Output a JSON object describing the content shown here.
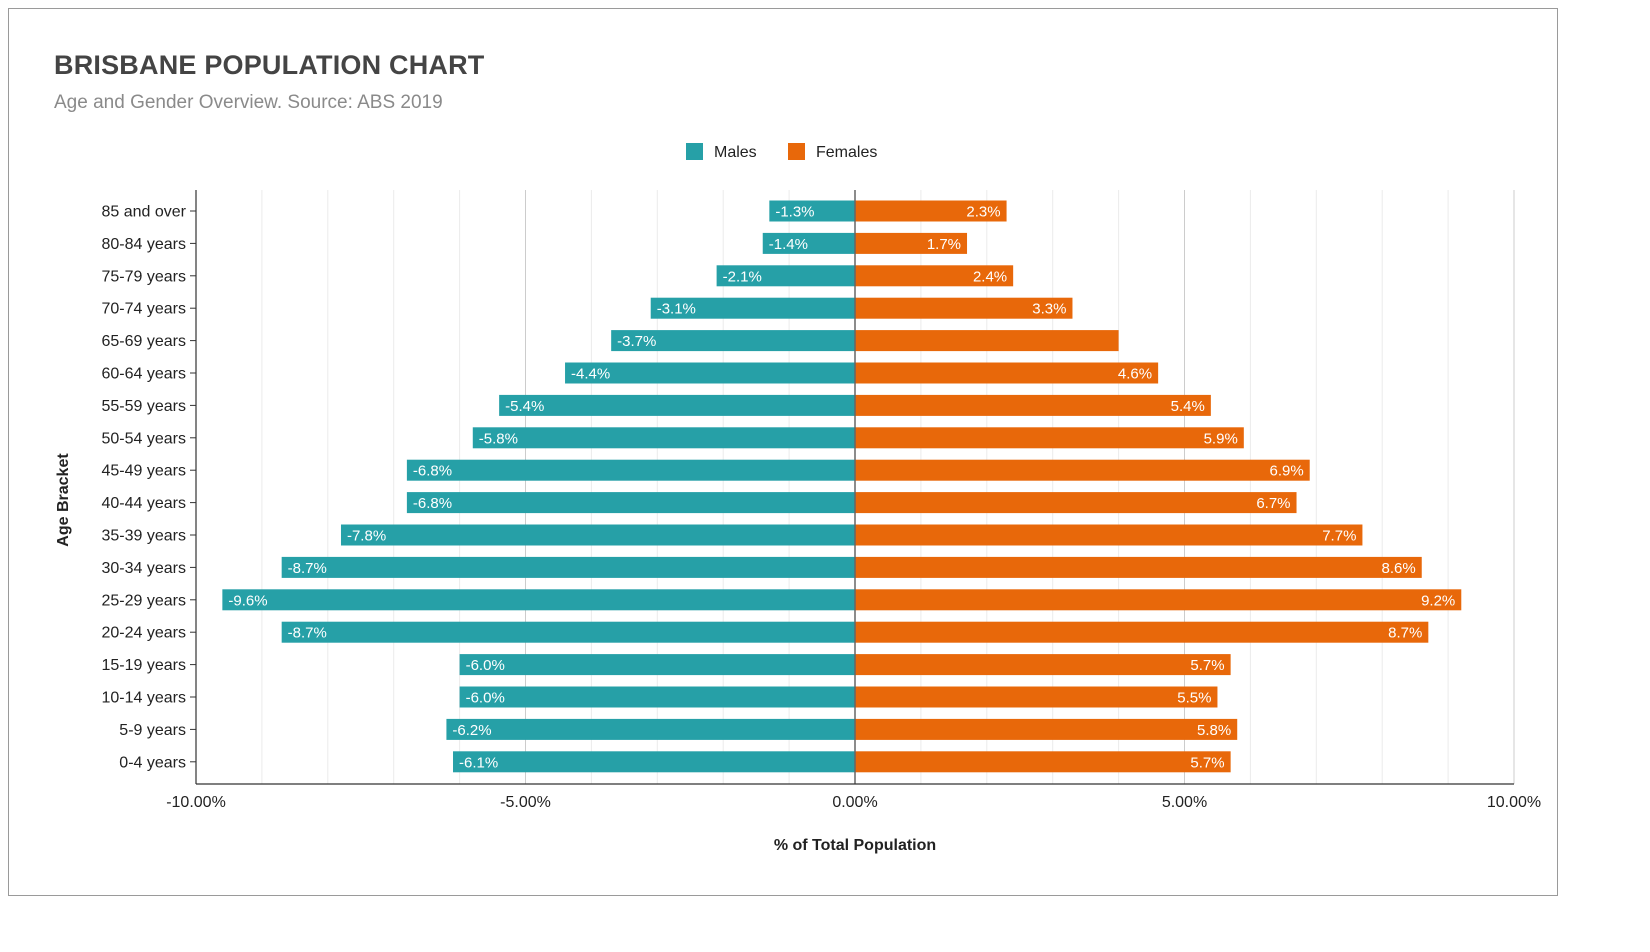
{
  "chart_data": {
    "type": "bar",
    "orientation": "horizontal",
    "title": "BRISBANE POPULATION CHART",
    "subtitle": "Age and Gender Overview. Source: ABS 2019",
    "xlabel": "% of Total Population",
    "ylabel": "Age Bracket",
    "xlim": [
      -10,
      10
    ],
    "xticks": [
      -10,
      -5,
      0,
      5,
      10
    ],
    "xtick_labels": [
      "-10.00%",
      "-5.00%",
      "0.00%",
      "5.00%",
      "10.00%"
    ],
    "grid": true,
    "legend_position": "top-center",
    "categories": [
      "85 and over",
      "80-84 years",
      "75-79 years",
      "70-74 years",
      "65-69 years",
      "60-64 years",
      "55-59 years",
      "50-54 years",
      "45-49 years",
      "40-44 years",
      "35-39 years",
      "30-34 years",
      "25-29 years",
      "20-24 years",
      "15-19 years",
      "10-14 years",
      "5-9 years",
      "0-4 years"
    ],
    "series": [
      {
        "name": "Males",
        "color": "#26a0a7",
        "values": [
          -1.3,
          -1.4,
          -2.1,
          -3.1,
          -3.7,
          -4.4,
          -5.4,
          -5.8,
          -6.8,
          -6.8,
          -7.8,
          -8.7,
          -9.6,
          -8.7,
          -6.0,
          -6.0,
          -6.2,
          -6.1
        ],
        "labels": [
          "-1.3%",
          "-1.4%",
          "-2.1%",
          "-3.1%",
          "-3.7%",
          "-4.4%",
          "-5.4%",
          "-5.8%",
          "-6.8%",
          "-6.8%",
          "-7.8%",
          "-8.7%",
          "-9.6%",
          "-8.7%",
          "-6.0%",
          "-6.0%",
          "-6.2%",
          "-6.1%"
        ]
      },
      {
        "name": "Females",
        "color": "#e8680a",
        "values": [
          2.3,
          1.7,
          2.4,
          3.3,
          4.0,
          4.6,
          5.4,
          5.9,
          6.9,
          6.7,
          7.7,
          8.6,
          9.2,
          8.7,
          5.7,
          5.5,
          5.8,
          5.7
        ],
        "labels": [
          "2.3%",
          "1.7%",
          "2.4%",
          "3.3%",
          "",
          "4.6%",
          "5.4%",
          "5.9%",
          "6.9%",
          "6.7%",
          "7.7%",
          "8.6%",
          "9.2%",
          "8.7%",
          "5.7%",
          "5.5%",
          "5.8%",
          "5.7%"
        ]
      }
    ]
  }
}
